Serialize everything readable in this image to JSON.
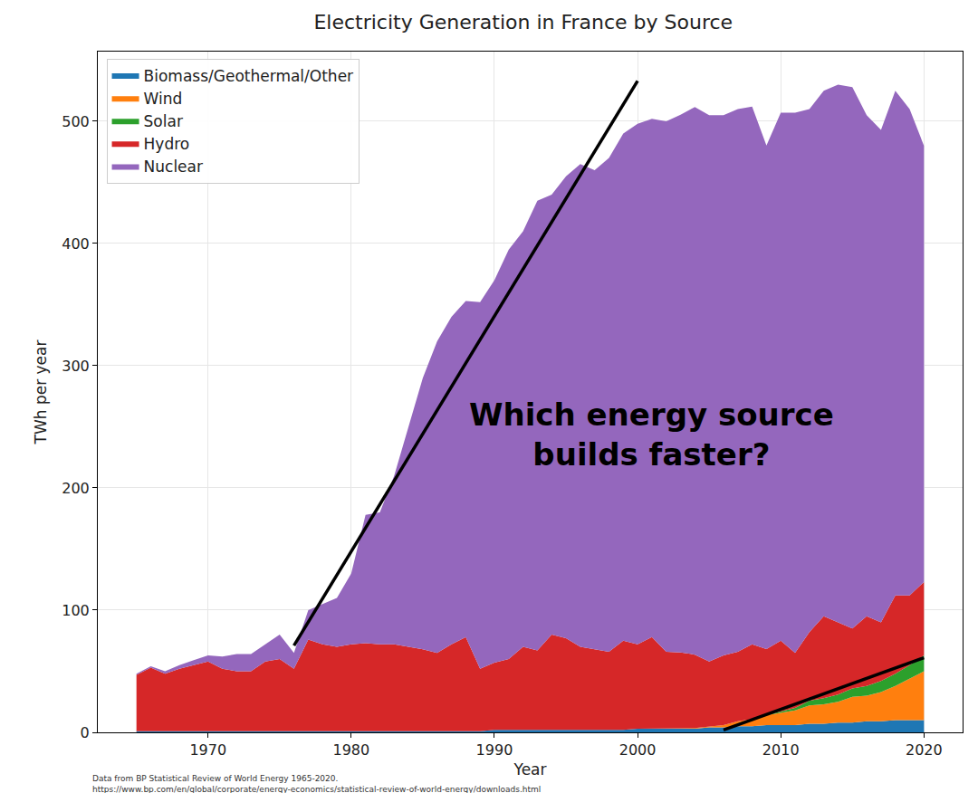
{
  "chart_data": {
    "type": "area",
    "title": "Electricity Generation in France by Source",
    "x_label": "Year",
    "y_label": "TWh per year",
    "x": [
      1965,
      1966,
      1967,
      1968,
      1969,
      1970,
      1971,
      1972,
      1973,
      1974,
      1975,
      1976,
      1977,
      1978,
      1979,
      1980,
      1981,
      1982,
      1983,
      1984,
      1985,
      1986,
      1987,
      1988,
      1989,
      1990,
      1991,
      1992,
      1993,
      1994,
      1995,
      1996,
      1997,
      1998,
      1999,
      2000,
      2001,
      2002,
      2003,
      2004,
      2005,
      2006,
      2007,
      2008,
      2009,
      2010,
      2011,
      2012,
      2013,
      2014,
      2015,
      2016,
      2017,
      2018,
      2019,
      2020
    ],
    "series": [
      {
        "name": "Biomass/Geothermal/Other",
        "color": "#1f77b4",
        "values": [
          1,
          1,
          1,
          1,
          1,
          1,
          1,
          1,
          1,
          1,
          1,
          1,
          1,
          1,
          1,
          1,
          1,
          1,
          1,
          1,
          1,
          1,
          1,
          1,
          1,
          2,
          2,
          2,
          2,
          2,
          2,
          2,
          2,
          2,
          2,
          3,
          3,
          3,
          3,
          3,
          4,
          4,
          5,
          5,
          6,
          6,
          6,
          7,
          7,
          8,
          8,
          9,
          9,
          10,
          10,
          10
        ]
      },
      {
        "name": "Wind",
        "color": "#ff7f0e",
        "values": [
          0,
          0,
          0,
          0,
          0,
          0,
          0,
          0,
          0,
          0,
          0,
          0,
          0,
          0,
          0,
          0,
          0,
          0,
          0,
          0,
          0,
          0,
          0,
          0,
          0,
          0,
          0,
          0,
          0,
          0,
          0,
          0,
          0,
          0,
          0,
          0,
          0,
          0,
          0.4,
          0.6,
          1,
          2,
          4,
          6,
          8,
          10,
          12,
          15,
          16,
          17,
          21,
          21,
          24,
          28,
          34,
          40
        ]
      },
      {
        "name": "Solar",
        "color": "#2ca02c",
        "values": [
          0,
          0,
          0,
          0,
          0,
          0,
          0,
          0,
          0,
          0,
          0,
          0,
          0,
          0,
          0,
          0,
          0,
          0,
          0,
          0,
          0,
          0,
          0,
          0,
          0,
          0,
          0,
          0,
          0,
          0,
          0,
          0,
          0,
          0,
          0,
          0,
          0,
          0,
          0,
          0,
          0,
          0,
          0,
          0,
          0.2,
          1,
          2,
          4,
          5,
          6,
          7,
          8,
          9,
          10,
          11,
          13
        ]
      },
      {
        "name": "Hydro",
        "color": "#d62728",
        "values": [
          46,
          52,
          47,
          51,
          54,
          57,
          51,
          49,
          49,
          57,
          59,
          51,
          75,
          71,
          69,
          71,
          72,
          71,
          71,
          69,
          67,
          64,
          71,
          77,
          51,
          55,
          58,
          68,
          65,
          78,
          75,
          68,
          66,
          64,
          73,
          69,
          75,
          63,
          62,
          60,
          53,
          57,
          57,
          61,
          54,
          58,
          45,
          56,
          67,
          59,
          49,
          57,
          48,
          64,
          57,
          60
        ]
      },
      {
        "name": "Nuclear",
        "color": "#9467bd",
        "values": [
          1,
          1,
          2,
          3,
          4,
          5,
          10,
          14,
          14,
          14,
          20,
          13,
          24,
          33,
          40,
          58,
          105,
          108,
          138,
          180,
          222,
          255,
          268,
          275,
          300,
          313,
          335,
          340,
          368,
          360,
          378,
          395,
          392,
          404,
          415,
          426,
          424,
          434,
          440,
          448,
          447,
          442,
          444,
          440,
          412,
          432,
          442,
          428,
          430,
          440,
          443,
          410,
          403,
          413,
          398,
          357
        ]
      }
    ],
    "lines": [
      {
        "x": [
          1976,
          2000
        ],
        "y": [
          71,
          533
        ]
      },
      {
        "x": [
          2006,
          2020
        ],
        "y": [
          2,
          61
        ]
      }
    ],
    "annotations": [
      {
        "lines": [
          "Which energy source",
          "builds faster?"
        ],
        "x": 2001,
        "y": 244
      }
    ],
    "source": [
      "Data from BP Statistical Review of World Energy 1965-2020.",
      "https://www.bp.com/en/global/corporate/energy-economics/statistical-review-of-world-energy/downloads.html"
    ],
    "xlim": [
      1962.3,
      2022.7
    ],
    "ylim": [
      0,
      557
    ],
    "xticks": [
      1970,
      1980,
      1990,
      2000,
      2010,
      2020
    ],
    "yticks": [
      0,
      100,
      200,
      300,
      400,
      500
    ],
    "stacked": true,
    "grid": true,
    "legend": "upper left"
  }
}
